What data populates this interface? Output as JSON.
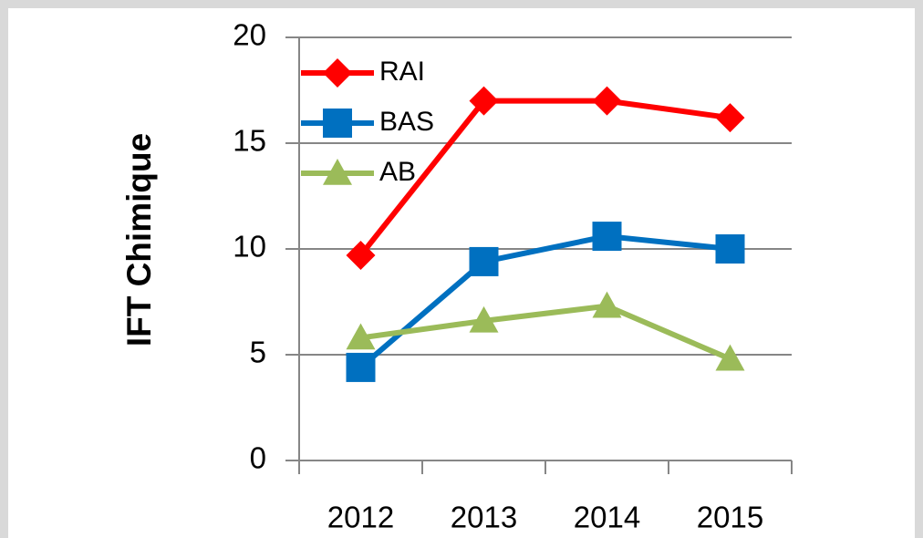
{
  "chart_data": {
    "type": "line",
    "ylabel": "IFT Chimique",
    "categories": [
      "2012",
      "2013",
      "2014",
      "2015"
    ],
    "series": [
      {
        "name": "RAI",
        "color": "#ff0000",
        "marker": "diamond",
        "values": [
          9.7,
          17,
          17,
          16.2
        ]
      },
      {
        "name": "BAS",
        "color": "#0070c0",
        "marker": "square",
        "values": [
          4.4,
          9.4,
          10.6,
          10
        ]
      },
      {
        "name": "AB",
        "color": "#9bbb59",
        "marker": "triangle",
        "values": [
          5.8,
          6.6,
          7.3,
          4.8
        ]
      }
    ],
    "ylim": [
      0,
      20
    ],
    "yticks": [
      0,
      5,
      10,
      15,
      20
    ],
    "grid": true,
    "legend": "upper left"
  }
}
